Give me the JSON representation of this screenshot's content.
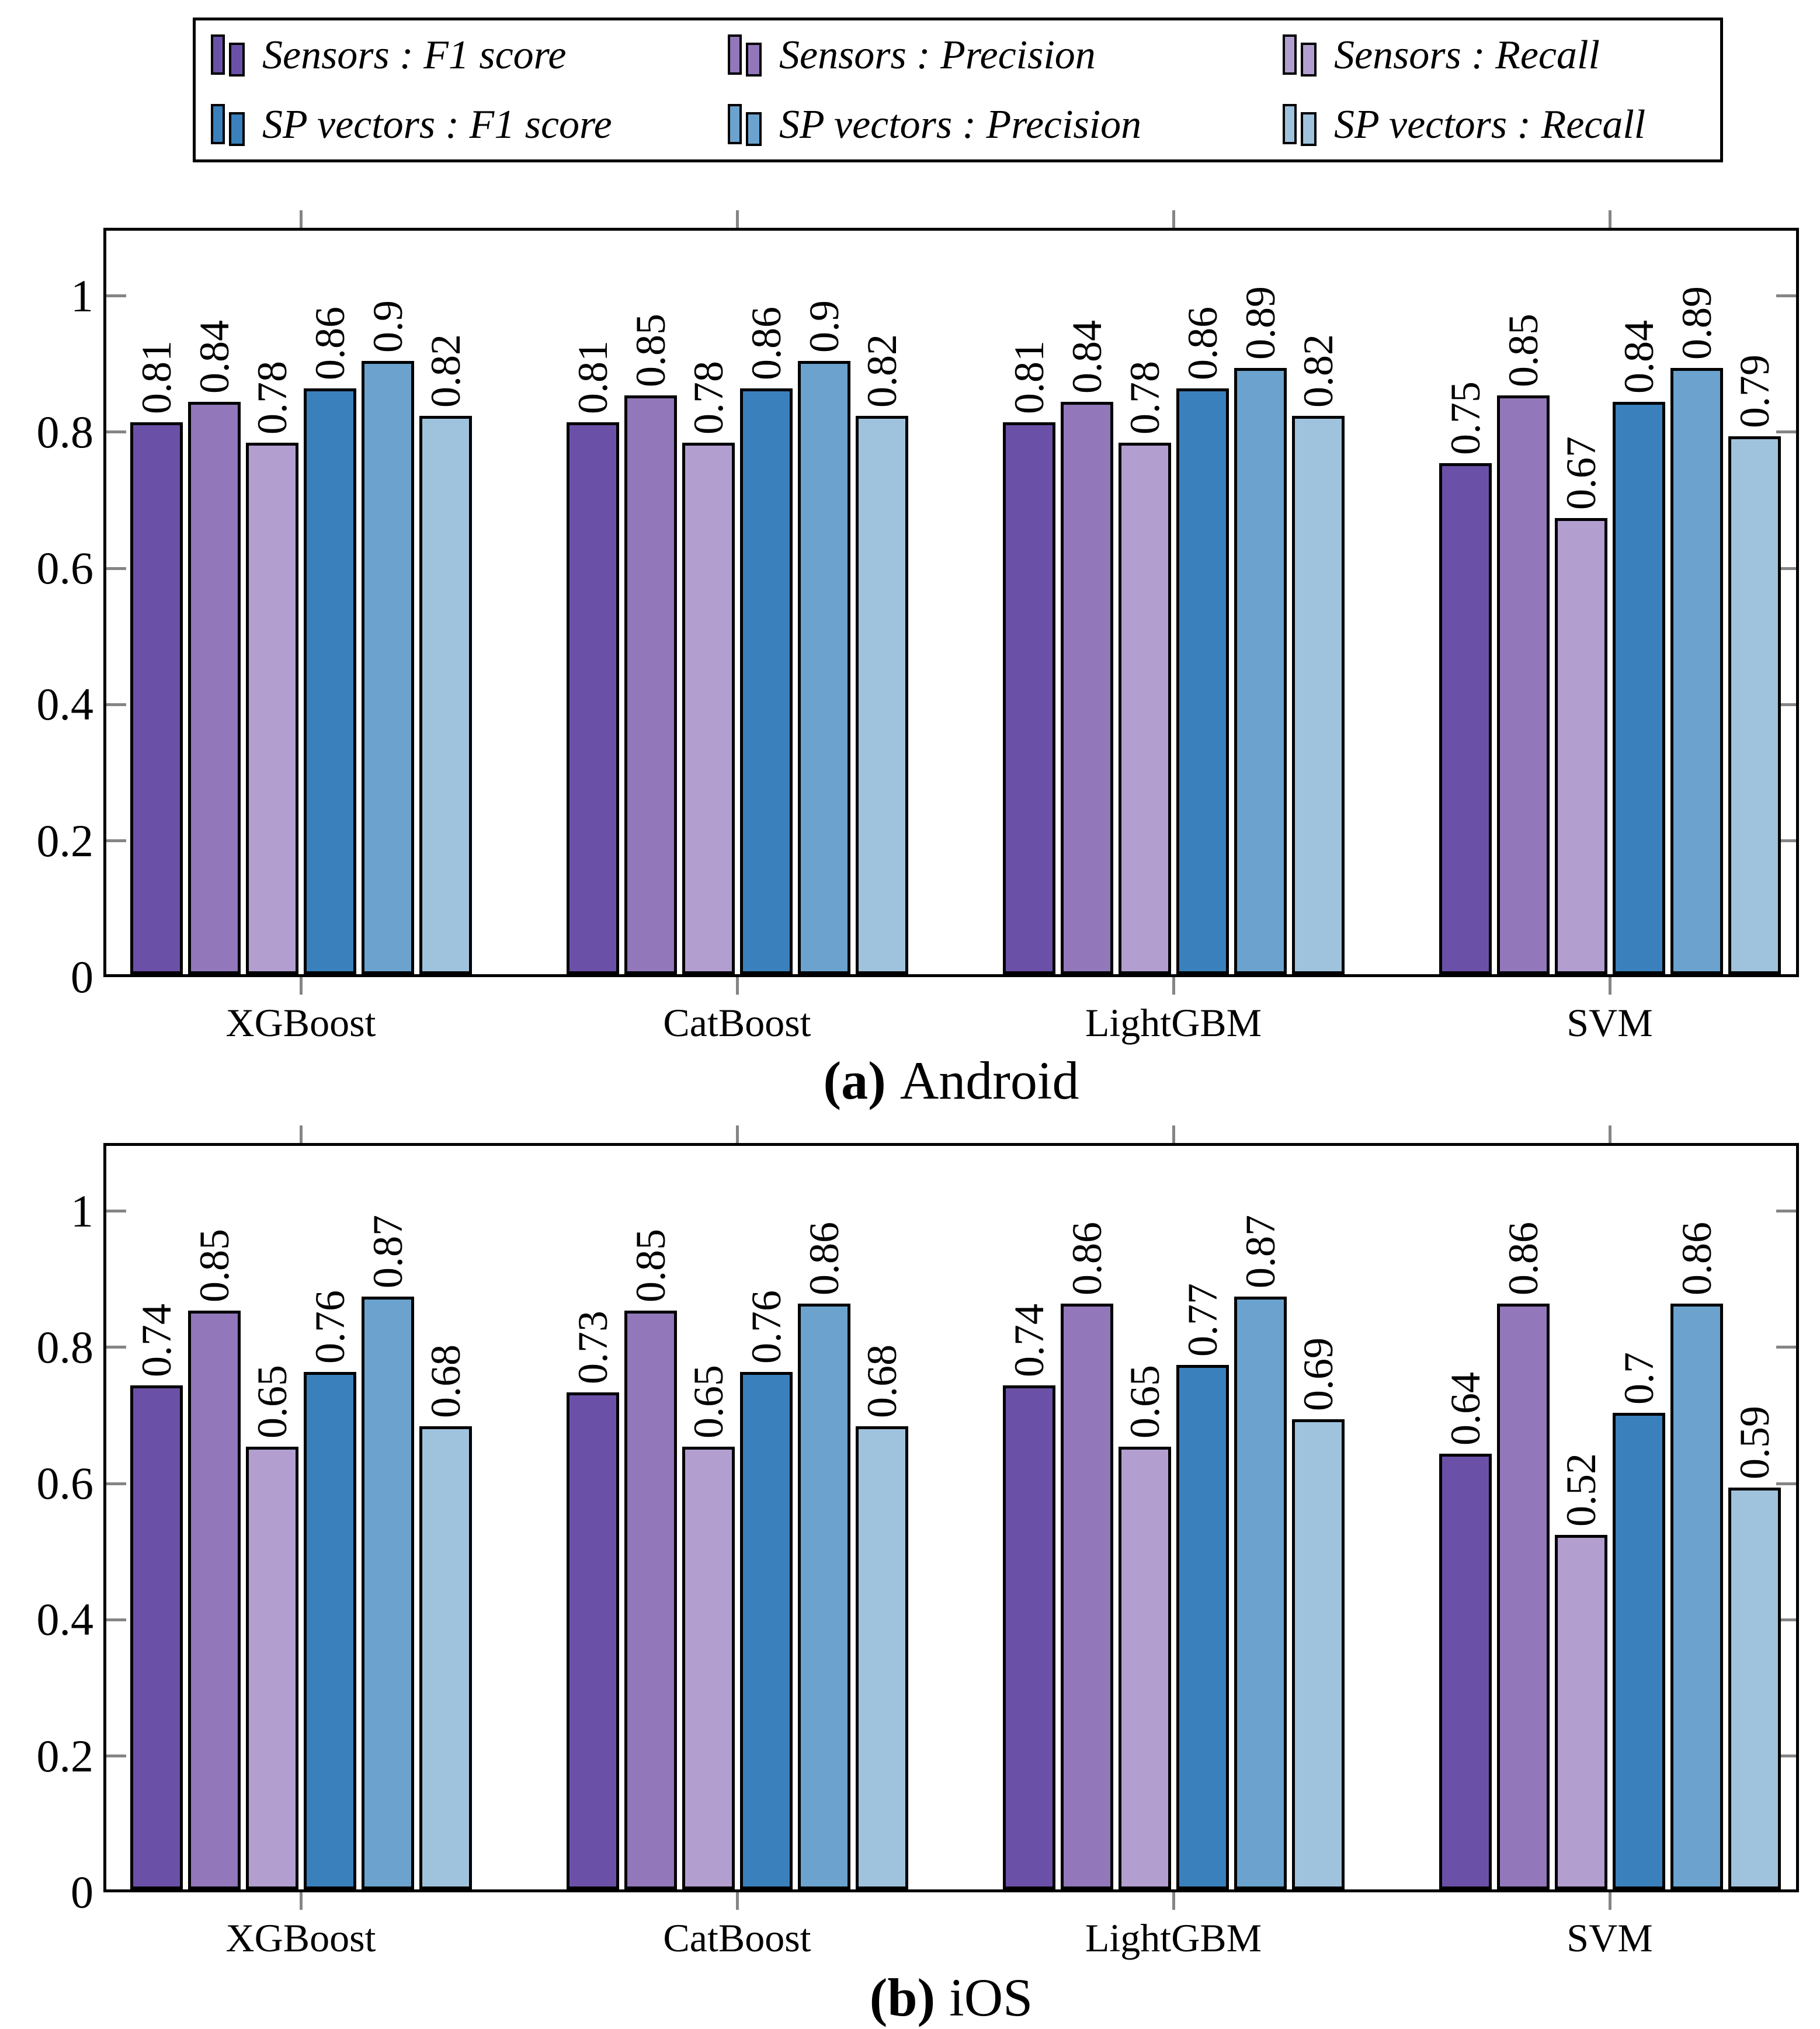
{
  "palette": {
    "sensors_f1": "#6A51A7",
    "sensors_precision": "#9277BA",
    "sensors_recall": "#B29FD0",
    "sp_f1": "#3A80BC",
    "sp_precision": "#6BA3CE",
    "sp_recall": "#A0C3DD",
    "tick_color": "#858585",
    "frame_color": "#000000"
  },
  "legend": {
    "entries": [
      {
        "key": "sensors_f1",
        "label": "Sensors : F1 score",
        "color": "#6A51A7"
      },
      {
        "key": "sensors_precision",
        "label": "Sensors : Precision",
        "color": "#9277BA"
      },
      {
        "key": "sensors_recall",
        "label": "Sensors : Recall",
        "color": "#B29FD0"
      },
      {
        "key": "sp_f1",
        "label": "SP vectors : F1 score",
        "color": "#3A80BC"
      },
      {
        "key": "sp_precision",
        "label": "SP vectors : Precision",
        "color": "#6BA3CE"
      },
      {
        "key": "sp_recall",
        "label": "SP vectors : Recall",
        "color": "#A0C3DD"
      }
    ]
  },
  "chart_data": [
    {
      "type": "bar",
      "caption": {
        "tag": "(a)",
        "text": "Android"
      },
      "categories": [
        "XGBoost",
        "CatBoost",
        "LightGBM",
        "SVM"
      ],
      "series": [
        {
          "key": "sensors_f1",
          "name": "Sensors : F1 score",
          "values": [
            0.81,
            0.81,
            0.81,
            0.75
          ]
        },
        {
          "key": "sensors_precision",
          "name": "Sensors : Precision",
          "values": [
            0.84,
            0.85,
            0.84,
            0.85
          ]
        },
        {
          "key": "sensors_recall",
          "name": "Sensors : Recall",
          "values": [
            0.78,
            0.78,
            0.78,
            0.67
          ]
        },
        {
          "key": "sp_f1",
          "name": "SP vectors : F1 score",
          "values": [
            0.86,
            0.86,
            0.86,
            0.84
          ]
        },
        {
          "key": "sp_precision",
          "name": "SP vectors : Precision",
          "values": [
            0.9,
            0.9,
            0.89,
            0.89
          ]
        },
        {
          "key": "sp_recall",
          "name": "SP vectors : Recall",
          "values": [
            0.82,
            0.82,
            0.82,
            0.79
          ]
        }
      ],
      "ylim": [
        0,
        1.1
      ],
      "ytick_values": [
        0,
        0.2,
        0.4,
        0.6,
        0.8,
        1
      ],
      "ytick_labels": [
        "0",
        "0.2",
        "0.4",
        "0.6",
        "0.8",
        "1"
      ],
      "grid": false,
      "bar_value_labels": true,
      "legend_position": "above-figure"
    },
    {
      "type": "bar",
      "caption": {
        "tag": "(b)",
        "text": "iOS"
      },
      "categories": [
        "XGBoost",
        "CatBoost",
        "LightGBM",
        "SVM"
      ],
      "series": [
        {
          "key": "sensors_f1",
          "name": "Sensors : F1 score",
          "values": [
            0.74,
            0.73,
            0.74,
            0.64
          ]
        },
        {
          "key": "sensors_precision",
          "name": "Sensors : Precision",
          "values": [
            0.85,
            0.85,
            0.86,
            0.86
          ]
        },
        {
          "key": "sensors_recall",
          "name": "Sensors : Recall",
          "values": [
            0.65,
            0.65,
            0.65,
            0.52
          ]
        },
        {
          "key": "sp_f1",
          "name": "SP vectors : F1 score",
          "values": [
            0.76,
            0.76,
            0.77,
            0.7
          ]
        },
        {
          "key": "sp_precision",
          "name": "SP vectors : Precision",
          "values": [
            0.87,
            0.86,
            0.87,
            0.86
          ]
        },
        {
          "key": "sp_recall",
          "name": "SP vectors : Recall",
          "values": [
            0.68,
            0.68,
            0.69,
            0.59
          ]
        }
      ],
      "ylim": [
        0,
        1.1
      ],
      "ytick_values": [
        0,
        0.2,
        0.4,
        0.6,
        0.8,
        1
      ],
      "ytick_labels": [
        "0",
        "0.2",
        "0.4",
        "0.6",
        "0.8",
        "1"
      ],
      "grid": false,
      "bar_value_labels": true,
      "legend_position": "above-figure"
    }
  ]
}
